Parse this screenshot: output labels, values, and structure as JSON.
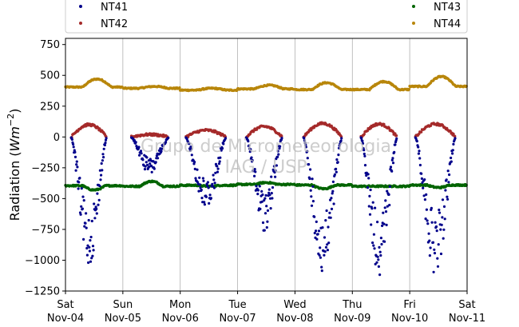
{
  "chart_data": {
    "type": "scatter",
    "title": "",
    "ylabel": "Radiation (Wm⁻²)",
    "ylabel_main": "Radiation (",
    "ylabel_unit": "Wm",
    "ylabel_exp": "−2",
    "ylabel_close": ")",
    "xlabel": "",
    "ylim": [
      -1250,
      800
    ],
    "xlim": [
      0,
      7
    ],
    "grid": "vertical",
    "legend_position": "top",
    "yticks": [
      {
        "value": 750,
        "label": "750"
      },
      {
        "value": 500,
        "label": "500"
      },
      {
        "value": 250,
        "label": "250"
      },
      {
        "value": 0,
        "label": "0"
      },
      {
        "value": -250,
        "label": "−250"
      },
      {
        "value": -500,
        "label": "−500"
      },
      {
        "value": -750,
        "label": "−750"
      },
      {
        "value": -1000,
        "label": "−1000"
      },
      {
        "value": -1250,
        "label": "−1250"
      }
    ],
    "xticks": [
      {
        "day": 0,
        "weekday": "Sat",
        "date": "Nov-04"
      },
      {
        "day": 1,
        "weekday": "Sun",
        "date": "Nov-05"
      },
      {
        "day": 2,
        "weekday": "Mon",
        "date": "Nov-06"
      },
      {
        "day": 3,
        "weekday": "Tue",
        "date": "Nov-07"
      },
      {
        "day": 4,
        "weekday": "Wed",
        "date": "Nov-08"
      },
      {
        "day": 5,
        "weekday": "Thu",
        "date": "Nov-09"
      },
      {
        "day": 6,
        "weekday": "Fri",
        "date": "Nov-10"
      },
      {
        "day": 7,
        "weekday": "Sat",
        "date": "Nov-11"
      }
    ],
    "series": [
      {
        "name": "NT41",
        "color": "#00008b",
        "baseline": -5,
        "daily_min": [
          -1050,
          -300,
          -600,
          -760,
          -1150,
          -1120,
          -1120
        ],
        "amplitude": [
          0.3,
          1.2,
          0.8,
          1.0,
          0.8,
          1.1,
          1.0
        ],
        "day_start": [
          0.1,
          0.15,
          0.1,
          0.15,
          0.15,
          0.15,
          0.1
        ],
        "day_end": [
          0.72,
          0.8,
          0.8,
          0.78,
          0.82,
          0.78,
          0.8
        ]
      },
      {
        "name": "NT42",
        "color": "#a52a2a",
        "day_peak": [
          100,
          20,
          55,
          85,
          110,
          105,
          105
        ],
        "day_start": [
          0.1,
          0.15,
          0.1,
          0.15,
          0.15,
          0.15,
          0.1
        ],
        "day_end": [
          0.72,
          0.8,
          0.8,
          0.78,
          0.82,
          0.78,
          0.8
        ]
      },
      {
        "name": "NT43",
        "color": "#006400",
        "daily_baseline": [
          -395,
          -400,
          -392,
          -385,
          -390,
          -400,
          -390
        ],
        "daily_dip": [
          -430,
          -360,
          -400,
          -370,
          -420,
          -400,
          -410
        ]
      },
      {
        "name": "NT44",
        "color": "#b8860b",
        "daily_baseline": [
          405,
          395,
          380,
          390,
          385,
          385,
          410
        ],
        "daily_peak": [
          470,
          410,
          395,
          420,
          440,
          450,
          490
        ]
      }
    ],
    "watermark": [
      "Grupo de Micrometeorologia",
      "IAG / USP"
    ]
  }
}
